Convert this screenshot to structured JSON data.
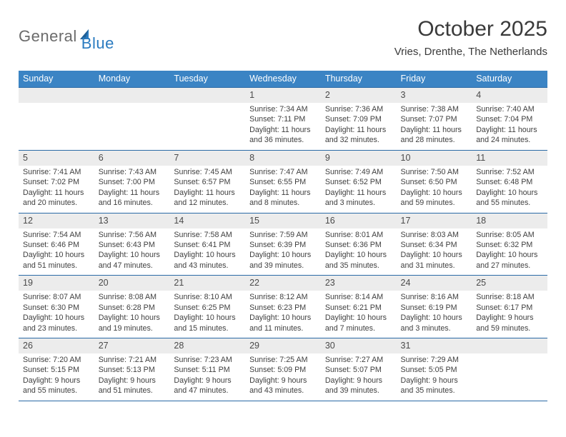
{
  "brand": {
    "general": "General",
    "blue": "Blue"
  },
  "title": "October 2025",
  "location": "Vries, Drenthe, The Netherlands",
  "colors": {
    "header_bg": "#3b84c4",
    "header_text": "#ffffff",
    "daynum_bg": "#ececec",
    "rule": "#2a6aa6",
    "text": "#3a3a3a",
    "logo_gray": "#6b6b6b",
    "logo_blue": "#2a7bc0"
  },
  "weekdays": [
    "Sunday",
    "Monday",
    "Tuesday",
    "Wednesday",
    "Thursday",
    "Friday",
    "Saturday"
  ],
  "weeks": [
    [
      null,
      null,
      null,
      {
        "d": "1",
        "sr": "Sunrise: 7:34 AM",
        "ss": "Sunset: 7:11 PM",
        "dl": "Daylight: 11 hours and 36 minutes."
      },
      {
        "d": "2",
        "sr": "Sunrise: 7:36 AM",
        "ss": "Sunset: 7:09 PM",
        "dl": "Daylight: 11 hours and 32 minutes."
      },
      {
        "d": "3",
        "sr": "Sunrise: 7:38 AM",
        "ss": "Sunset: 7:07 PM",
        "dl": "Daylight: 11 hours and 28 minutes."
      },
      {
        "d": "4",
        "sr": "Sunrise: 7:40 AM",
        "ss": "Sunset: 7:04 PM",
        "dl": "Daylight: 11 hours and 24 minutes."
      }
    ],
    [
      {
        "d": "5",
        "sr": "Sunrise: 7:41 AM",
        "ss": "Sunset: 7:02 PM",
        "dl": "Daylight: 11 hours and 20 minutes."
      },
      {
        "d": "6",
        "sr": "Sunrise: 7:43 AM",
        "ss": "Sunset: 7:00 PM",
        "dl": "Daylight: 11 hours and 16 minutes."
      },
      {
        "d": "7",
        "sr": "Sunrise: 7:45 AM",
        "ss": "Sunset: 6:57 PM",
        "dl": "Daylight: 11 hours and 12 minutes."
      },
      {
        "d": "8",
        "sr": "Sunrise: 7:47 AM",
        "ss": "Sunset: 6:55 PM",
        "dl": "Daylight: 11 hours and 8 minutes."
      },
      {
        "d": "9",
        "sr": "Sunrise: 7:49 AM",
        "ss": "Sunset: 6:52 PM",
        "dl": "Daylight: 11 hours and 3 minutes."
      },
      {
        "d": "10",
        "sr": "Sunrise: 7:50 AM",
        "ss": "Sunset: 6:50 PM",
        "dl": "Daylight: 10 hours and 59 minutes."
      },
      {
        "d": "11",
        "sr": "Sunrise: 7:52 AM",
        "ss": "Sunset: 6:48 PM",
        "dl": "Daylight: 10 hours and 55 minutes."
      }
    ],
    [
      {
        "d": "12",
        "sr": "Sunrise: 7:54 AM",
        "ss": "Sunset: 6:46 PM",
        "dl": "Daylight: 10 hours and 51 minutes."
      },
      {
        "d": "13",
        "sr": "Sunrise: 7:56 AM",
        "ss": "Sunset: 6:43 PM",
        "dl": "Daylight: 10 hours and 47 minutes."
      },
      {
        "d": "14",
        "sr": "Sunrise: 7:58 AM",
        "ss": "Sunset: 6:41 PM",
        "dl": "Daylight: 10 hours and 43 minutes."
      },
      {
        "d": "15",
        "sr": "Sunrise: 7:59 AM",
        "ss": "Sunset: 6:39 PM",
        "dl": "Daylight: 10 hours and 39 minutes."
      },
      {
        "d": "16",
        "sr": "Sunrise: 8:01 AM",
        "ss": "Sunset: 6:36 PM",
        "dl": "Daylight: 10 hours and 35 minutes."
      },
      {
        "d": "17",
        "sr": "Sunrise: 8:03 AM",
        "ss": "Sunset: 6:34 PM",
        "dl": "Daylight: 10 hours and 31 minutes."
      },
      {
        "d": "18",
        "sr": "Sunrise: 8:05 AM",
        "ss": "Sunset: 6:32 PM",
        "dl": "Daylight: 10 hours and 27 minutes."
      }
    ],
    [
      {
        "d": "19",
        "sr": "Sunrise: 8:07 AM",
        "ss": "Sunset: 6:30 PM",
        "dl": "Daylight: 10 hours and 23 minutes."
      },
      {
        "d": "20",
        "sr": "Sunrise: 8:08 AM",
        "ss": "Sunset: 6:28 PM",
        "dl": "Daylight: 10 hours and 19 minutes."
      },
      {
        "d": "21",
        "sr": "Sunrise: 8:10 AM",
        "ss": "Sunset: 6:25 PM",
        "dl": "Daylight: 10 hours and 15 minutes."
      },
      {
        "d": "22",
        "sr": "Sunrise: 8:12 AM",
        "ss": "Sunset: 6:23 PM",
        "dl": "Daylight: 10 hours and 11 minutes."
      },
      {
        "d": "23",
        "sr": "Sunrise: 8:14 AM",
        "ss": "Sunset: 6:21 PM",
        "dl": "Daylight: 10 hours and 7 minutes."
      },
      {
        "d": "24",
        "sr": "Sunrise: 8:16 AM",
        "ss": "Sunset: 6:19 PM",
        "dl": "Daylight: 10 hours and 3 minutes."
      },
      {
        "d": "25",
        "sr": "Sunrise: 8:18 AM",
        "ss": "Sunset: 6:17 PM",
        "dl": "Daylight: 9 hours and 59 minutes."
      }
    ],
    [
      {
        "d": "26",
        "sr": "Sunrise: 7:20 AM",
        "ss": "Sunset: 5:15 PM",
        "dl": "Daylight: 9 hours and 55 minutes."
      },
      {
        "d": "27",
        "sr": "Sunrise: 7:21 AM",
        "ss": "Sunset: 5:13 PM",
        "dl": "Daylight: 9 hours and 51 minutes."
      },
      {
        "d": "28",
        "sr": "Sunrise: 7:23 AM",
        "ss": "Sunset: 5:11 PM",
        "dl": "Daylight: 9 hours and 47 minutes."
      },
      {
        "d": "29",
        "sr": "Sunrise: 7:25 AM",
        "ss": "Sunset: 5:09 PM",
        "dl": "Daylight: 9 hours and 43 minutes."
      },
      {
        "d": "30",
        "sr": "Sunrise: 7:27 AM",
        "ss": "Sunset: 5:07 PM",
        "dl": "Daylight: 9 hours and 39 minutes."
      },
      {
        "d": "31",
        "sr": "Sunrise: 7:29 AM",
        "ss": "Sunset: 5:05 PM",
        "dl": "Daylight: 9 hours and 35 minutes."
      },
      null
    ]
  ]
}
